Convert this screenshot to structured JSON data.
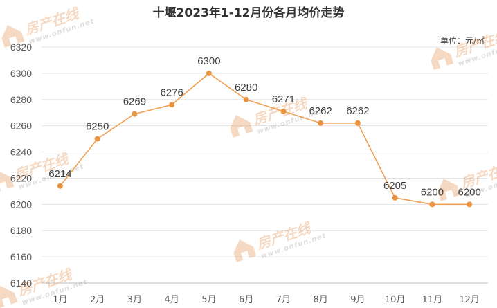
{
  "chart_data": {
    "type": "line",
    "title": "十堰2023年1-12月份各月均价走势",
    "unit_label": "单位：元/㎡",
    "categories": [
      "1月",
      "2月",
      "3月",
      "4月",
      "5月",
      "6月",
      "7月",
      "8月",
      "9月",
      "10月",
      "11月",
      "12月"
    ],
    "values": [
      6214,
      6250,
      6269,
      6276,
      6300,
      6280,
      6271,
      6262,
      6262,
      6205,
      6200,
      6200
    ],
    "ylim": [
      6140,
      6320
    ],
    "yticks": [
      6140,
      6160,
      6180,
      6200,
      6220,
      6240,
      6260,
      6280,
      6300,
      6320
    ],
    "grid": true,
    "series_color": "#f0a050",
    "marker_color": "#eb9440"
  },
  "watermark": {
    "text": "房产在线",
    "url": "www.onfun.net",
    "color": "#e07b28"
  }
}
